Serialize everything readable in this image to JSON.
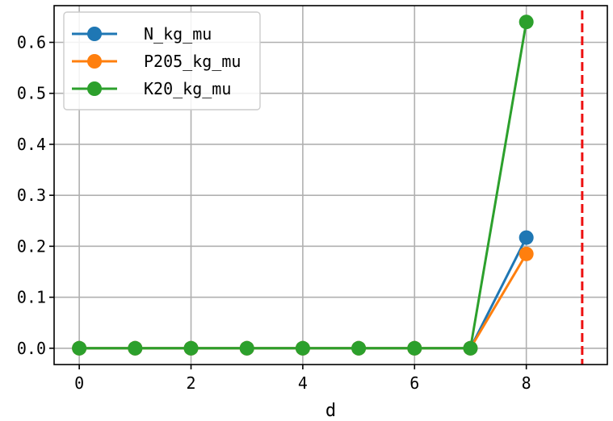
{
  "chart_data": {
    "type": "line",
    "title": "",
    "xlabel": "d",
    "ylabel": "",
    "x": [
      0,
      1,
      2,
      3,
      4,
      5,
      6,
      7,
      8
    ],
    "xlim": [
      -0.45,
      9.45
    ],
    "ylim": [
      -0.032,
      0.672
    ],
    "xticks": [
      0,
      2,
      4,
      6,
      8
    ],
    "xtick_labels": [
      "0",
      "2",
      "4",
      "6",
      "8"
    ],
    "yticks": [
      0.0,
      0.1,
      0.2,
      0.3,
      0.4,
      0.5,
      0.6
    ],
    "ytick_labels": [
      "0.0",
      "0.1",
      "0.2",
      "0.3",
      "0.4",
      "0.5",
      "0.6"
    ],
    "grid": true,
    "legend_position": "upper-left",
    "series": [
      {
        "name": "N_kg_mu",
        "color": "#1f77b4",
        "values": [
          0,
          0,
          0,
          0,
          0,
          0,
          0,
          0,
          0.217
        ]
      },
      {
        "name": "P205_kg_mu",
        "color": "#ff7f0e",
        "values": [
          0,
          0,
          0,
          0,
          0,
          0,
          0,
          0,
          0.185
        ]
      },
      {
        "name": "K20_kg_mu",
        "color": "#2ca02c",
        "values": [
          0,
          0,
          0,
          0,
          0,
          0,
          0,
          0,
          0.64
        ]
      }
    ],
    "reference_line": {
      "orientation": "vertical",
      "x": 9,
      "color": "#ee1111",
      "style": "dashed"
    }
  }
}
